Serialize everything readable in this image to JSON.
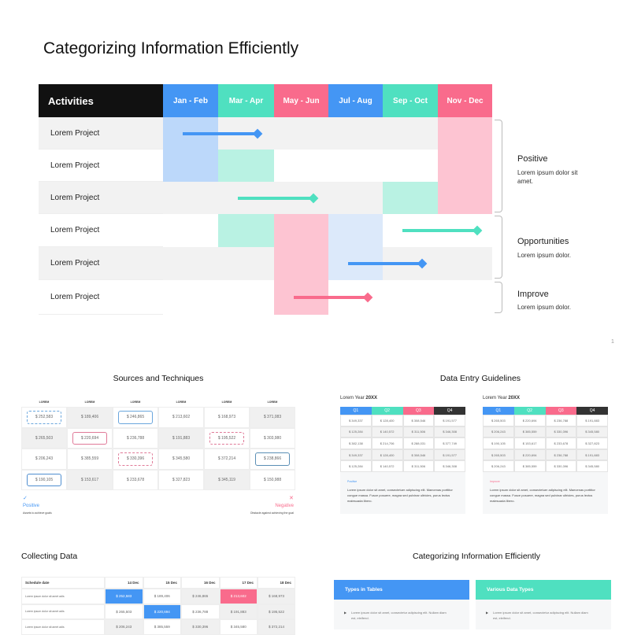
{
  "main": {
    "title": "Categorizing Information Efficiently",
    "header": [
      "Activities",
      "Jan - Feb",
      "Mar - Apr",
      "May - Jun",
      "Jul - Aug",
      "Sep - Oct",
      "Nov - Dec"
    ],
    "header_colors": [
      "#111111",
      "#4496f4",
      "#4fe0c0",
      "#f96b8c",
      "#4496f4",
      "#4fe0c0",
      "#f96b8c"
    ],
    "rows": [
      {
        "label": "Lorem Project",
        "cells": [
          "#bcd8fa",
          "#f2f2f2",
          "#f2f2f2",
          "#f2f2f2",
          "#f2f2f2",
          "#fdc4d2"
        ],
        "arrow": {
          "from": 0,
          "to": 1,
          "color": "#4496f4"
        }
      },
      {
        "label": "Lorem Project",
        "cells": [
          "#bcd8fa",
          "#b9f2e3",
          "#ffffff",
          "#ffffff",
          "#ffffff",
          "#fdc4d2"
        ]
      },
      {
        "label": "Lorem Project",
        "cells": [
          "#f2f2f2",
          "#f2f2f2",
          "#f2f2f2",
          "#f2f2f2",
          "#b9f2e3",
          "#fdc4d2"
        ],
        "arrow": {
          "from": 1,
          "to": 2,
          "color": "#4fe0c0"
        }
      },
      {
        "label": "Lorem Project",
        "cells": [
          "#ffffff",
          "#b9f2e3",
          "#fdc4d2",
          "#dce9fa",
          "#ffffff",
          "#ffffff"
        ],
        "arrow": {
          "from": 4,
          "to": 5,
          "color": "#4fe0c0"
        }
      },
      {
        "label": "Lorem Project",
        "cells": [
          "#f2f2f2",
          "#f2f2f2",
          "#fdc4d2",
          "#dce9fa",
          "#f2f2f2",
          "#f2f2f2"
        ],
        "arrow": {
          "from": 3,
          "to": 4,
          "color": "#4496f4"
        }
      },
      {
        "label": "Lorem Project",
        "cells": [
          "#ffffff",
          "#ffffff",
          "#fdc4d2",
          "#ffffff",
          "#ffffff",
          "#ffffff"
        ],
        "arrow": {
          "from": 2,
          "to": 3,
          "color": "#f96b8c"
        }
      }
    ],
    "groups": [
      {
        "title": "Positive",
        "text": "Lorem ipsum dolor sit amet."
      },
      {
        "title": "Opportunities",
        "text": "Lorem ipsum dolor."
      },
      {
        "title": "Improve",
        "text": "Lorem ipsum dolor."
      }
    ],
    "page_number": "1"
  },
  "sources": {
    "title": "Sources and Techniques",
    "headers": [
      "LOREM",
      "LOREM",
      "LOREM",
      "LOREM",
      "LOREM",
      "LOREM"
    ],
    "rows": [
      [
        "$ 252,583",
        "$ 189,406",
        "$ 246,865",
        "$ 213,602",
        "$ 168,973",
        "$ 371,083"
      ],
      [
        "$ 265,503",
        "$ 220,694",
        "$ 236,788",
        "$ 191,883",
        "$ 195,522",
        "$ 303,980"
      ],
      [
        "$ 206,243",
        "$ 385,559",
        "$ 330,396",
        "$ 345,580",
        "$ 372,214",
        "$ 238,866"
      ],
      [
        "$ 190,105",
        "$ 153,617",
        "$ 233,678",
        "$ 327,823",
        "$ 345,119",
        "$ 150,988"
      ]
    ],
    "positive": {
      "label": "Positive",
      "text": "Assets to achieve goals"
    },
    "negative": {
      "label": "Negative",
      "text": "Obstacle against achieving the goal"
    }
  },
  "guidelines": {
    "title": "Data Entry Guidelines",
    "quarters": [
      "Q1",
      "Q2",
      "Q3",
      "Q4"
    ],
    "quarter_colors": [
      "#4496f4",
      "#4fe0c0",
      "#f96b8c",
      "#333333"
    ],
    "tables": [
      {
        "year_prefix": "Lorem Year ",
        "year": "20XX",
        "note_title": "Positive",
        "note_color": "#4496f4",
        "note": "Lorem ipsum dolor sit amet, consectetuer adipiscing elit. Maecenas porttitor congue massa. Fusce posuere, magna sed pulvinar ultricies, purus lectus malesuada libero.",
        "rows": [
          [
            "$ 349,337",
            "$ 128,400",
            "$ 308,546",
            "$ 191,577"
          ],
          [
            "$ 125,284",
            "$ 140,572",
            "$ 311,506",
            "$ 346,308"
          ],
          [
            "$ 382,138",
            "$ 214,706",
            "$ 288,031",
            "$ 377,749"
          ],
          [
            "$ 349,337",
            "$ 128,400",
            "$ 308,546",
            "$ 191,577"
          ],
          [
            "$ 125,284",
            "$ 140,572",
            "$ 311,506",
            "$ 346,308"
          ]
        ]
      },
      {
        "year_prefix": "Lorem Year ",
        "year": "20XX",
        "note_title": "Improve",
        "note_color": "#f96b8c",
        "note": "Lorem ipsum dolor sit amet, consectetuer adipiscing elit. Maecenas porttitor congue massa. Fusce posuere, magna sed pulvinar ultricies, purus lectus malesuada libero.",
        "rows": [
          [
            "$ 265,503",
            "$ 220,694",
            "$ 236,788",
            "$ 191,883"
          ],
          [
            "$ 206,243",
            "$ 385,559",
            "$ 330,396",
            "$ 345,580"
          ],
          [
            "$ 190,105",
            "$ 153,617",
            "$ 233,678",
            "$ 327,823"
          ],
          [
            "$ 265,503",
            "$ 220,694",
            "$ 236,788",
            "$ 191,883"
          ],
          [
            "$ 206,243",
            "$ 385,559",
            "$ 330,396",
            "$ 345,580"
          ]
        ]
      }
    ]
  },
  "collecting": {
    "title": "Collecting Data",
    "headers": [
      "Schedule date",
      "14 Dec",
      "15 Dec",
      "16 Dec",
      "17 Dec",
      "18 Dec"
    ],
    "rows": [
      {
        "label": "Lorem ipsum dolor sit amet adis",
        "values": [
          "$ 252,583",
          "$ 189,406",
          "$ 246,865",
          "$ 213,602",
          "$ 168,973"
        ]
      },
      {
        "label": "Lorem ipsum dolor sit amet adis",
        "values": [
          "$ 265,503",
          "$ 220,694",
          "$ 236,788",
          "$ 191,883",
          "$ 195,522"
        ]
      },
      {
        "label": "Lorem ipsum dolor sit amet adis",
        "values": [
          "$ 206,243",
          "$ 385,559",
          "$ 330,396",
          "$ 345,580",
          "$ 372,214"
        ]
      }
    ]
  },
  "types": {
    "title": "Categorizing Information Efficiently",
    "cards": [
      {
        "title": "Types in Tables",
        "color": "#4496f4",
        "text": "Lorem ipsum dolor sit amet, consectetur adipiscing elit. Nullam diam est, eleifend."
      },
      {
        "title": "Various Data Types",
        "color": "#4fe0c0",
        "text": "Lorem ipsum dolor sit amet, consectetur adipiscing elit. Nullam diam est, eleifend."
      }
    ]
  }
}
